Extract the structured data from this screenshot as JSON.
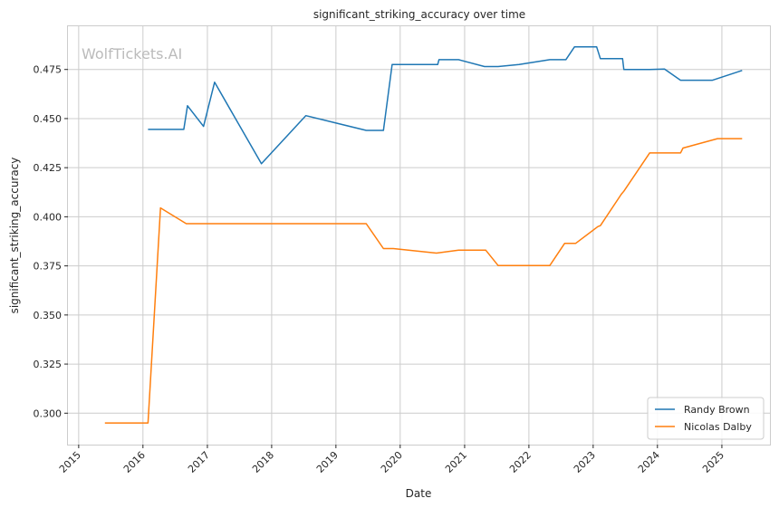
{
  "chart_data": {
    "type": "line",
    "title": "significant_striking_accuracy over time",
    "xlabel": "Date",
    "ylabel": "significant_striking_accuracy",
    "watermark": "WolfTickets.AI",
    "xlim": [
      "2014-11-01",
      "2025-10-01"
    ],
    "ylim": [
      0.284,
      0.497
    ],
    "x_ticks": [
      "2015-01-01",
      "2016-01-01",
      "2017-01-01",
      "2018-01-01",
      "2019-01-01",
      "2020-01-01",
      "2021-01-01",
      "2022-01-01",
      "2023-01-01",
      "2024-01-01",
      "2025-01-01"
    ],
    "x_tick_labels": [
      "2015",
      "2016",
      "2017",
      "2018",
      "2019",
      "2020",
      "2021",
      "2022",
      "2023",
      "2024",
      "2025"
    ],
    "y_ticks": [
      0.3,
      0.325,
      0.35,
      0.375,
      0.4,
      0.425,
      0.45,
      0.475
    ],
    "y_tick_labels": [
      "0.300",
      "0.325",
      "0.350",
      "0.375",
      "0.400",
      "0.425",
      "0.450",
      "0.475"
    ],
    "grid": true,
    "legend_position": "bottom-right",
    "series": [
      {
        "name": "Randy Brown",
        "color": "#1f77b4",
        "points": [
          [
            "2016-01-30",
            0.4445
          ],
          [
            "2016-08-20",
            0.4445
          ],
          [
            "2016-09-10",
            0.4565
          ],
          [
            "2016-12-10",
            0.446
          ],
          [
            "2017-02-11",
            0.4685
          ],
          [
            "2017-11-04",
            0.427
          ],
          [
            "2018-07-14",
            0.4515
          ],
          [
            "2019-06-22",
            0.444
          ],
          [
            "2019-09-28",
            0.444
          ],
          [
            "2019-11-16",
            0.4775
          ],
          [
            "2020-08-01",
            0.4775
          ],
          [
            "2020-08-08",
            0.48
          ],
          [
            "2020-11-28",
            0.48
          ],
          [
            "2021-04-24",
            0.4765
          ],
          [
            "2021-07-10",
            0.4765
          ],
          [
            "2021-11-06",
            0.4775
          ],
          [
            "2022-04-30",
            0.48
          ],
          [
            "2022-07-30",
            0.48
          ],
          [
            "2022-09-17",
            0.4865
          ],
          [
            "2023-01-21",
            0.4865
          ],
          [
            "2023-02-11",
            0.4805
          ],
          [
            "2023-06-17",
            0.4805
          ],
          [
            "2023-06-24",
            0.475
          ],
          [
            "2023-11-18",
            0.475
          ],
          [
            "2024-02-10",
            0.4752
          ],
          [
            "2024-05-11",
            0.4695
          ],
          [
            "2024-11-09",
            0.4695
          ],
          [
            "2025-04-26",
            0.4745
          ]
        ]
      },
      {
        "name": "Nicolas Dalby",
        "color": "#ff7f0e",
        "points": [
          [
            "2015-05-30",
            0.295
          ],
          [
            "2016-01-30",
            0.295
          ],
          [
            "2016-04-10",
            0.4045
          ],
          [
            "2016-09-03",
            0.3965
          ],
          [
            "2019-06-22",
            0.3965
          ],
          [
            "2019-09-28",
            0.3838
          ],
          [
            "2019-11-23",
            0.3838
          ],
          [
            "2020-07-25",
            0.3815
          ],
          [
            "2020-11-28",
            0.383
          ],
          [
            "2021-05-01",
            0.383
          ],
          [
            "2021-07-10",
            0.3752
          ],
          [
            "2022-04-30",
            0.3752
          ],
          [
            "2022-07-23",
            0.3865
          ],
          [
            "2022-09-24",
            0.3865
          ],
          [
            "2023-01-28",
            0.395
          ],
          [
            "2023-02-11",
            0.3955
          ],
          [
            "2023-06-10",
            0.4115
          ],
          [
            "2023-06-24",
            0.413
          ],
          [
            "2023-11-18",
            0.4325
          ],
          [
            "2024-05-11",
            0.4325
          ],
          [
            "2024-05-25",
            0.435
          ],
          [
            "2024-12-07",
            0.4398
          ],
          [
            "2025-04-26",
            0.4398
          ]
        ]
      }
    ]
  }
}
